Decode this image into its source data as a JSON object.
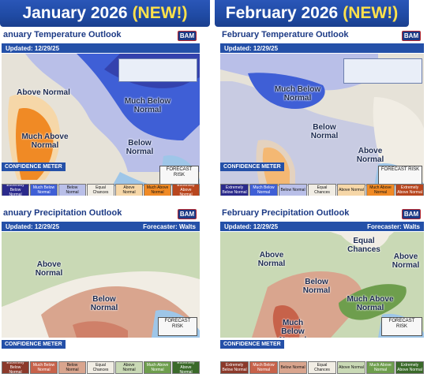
{
  "headers": {
    "left": {
      "title": "January 2026",
      "badge": "(NEW!)"
    },
    "right": {
      "title": "February 2026",
      "badge": "(NEW!)"
    }
  },
  "panels": {
    "jan_temp": {
      "title": "anuary Temperature Outlook",
      "logo": "BAM",
      "updated": "Updated: 12/29/25",
      "forecaster": "",
      "labels": [
        "Above Normal",
        "Much Below Normal",
        "Much Above Normal",
        "Below Normal"
      ],
      "meter": "CONFIDENCE METER",
      "forecast_risk": "FORECAST RISK",
      "legend": [
        "Extremely Below Normal",
        "Much Below Normal",
        "Below Normal",
        "Equal Chances",
        "Above Normal",
        "Much Above Normal",
        "Extremely Above Normal"
      ]
    },
    "feb_temp": {
      "title": "February Temperature Outlook",
      "logo": "BAM",
      "updated": "Updated: 12/29/25",
      "forecaster": "",
      "labels": [
        "Much Below Normal",
        "Below Normal",
        "Above Normal"
      ],
      "meter": "CONFIDENCE METER",
      "forecast_risk": "FORECAST RISK",
      "legend": [
        "Extremely Below Normal",
        "Much Below Normal",
        "Below Normal",
        "Equal Chances",
        "Above Normal",
        "Much Above Normal",
        "Extremely Above Normal"
      ]
    },
    "jan_precip": {
      "title": "anuary Precipitation Outlook",
      "logo": "BAM",
      "updated": "Updated: 12/29/25",
      "forecaster": "Forecaster: Walts",
      "labels": [
        "Above Normal",
        "Below Normal"
      ],
      "meter": "CONFIDENCE METER",
      "forecast_risk": "FORECAST RISK",
      "legend": [
        "Extremely Below Normal",
        "Much Below Normal",
        "Below Normal",
        "Equal Chances",
        "Above Normal",
        "Much Above Normal",
        "Extremely Above Normal"
      ]
    },
    "feb_precip": {
      "title": "February Precipitation Outlook",
      "logo": "BAM",
      "updated": "Updated: 12/29/25",
      "forecaster": "Forecaster: Walts",
      "labels": [
        "Above Normal",
        "Equal Chances",
        "Above Normal",
        "Below Normal",
        "Much Above Normal",
        "Much Below Normal"
      ],
      "meter": "CONFIDENCE METER",
      "forecast_risk": "FORECAST RISK",
      "legend": [
        "Extremely Below Normal",
        "Much Below Normal",
        "Below Normal",
        "Equal Chances",
        "Above Normal",
        "Much Above Normal",
        "Extremely Above Normal"
      ]
    }
  },
  "colors": {
    "header_blue": "#1f4aa3",
    "badge_yellow": "#ffe14a",
    "temp_legend": [
      "#2b2a8c",
      "#3f5fd6",
      "#b9bfe8",
      "#f1ede4",
      "#f6d7a8",
      "#f08a25",
      "#b8461e"
    ],
    "precip_legend": [
      "#8c3a2b",
      "#c7624a",
      "#d9a58e",
      "#f1ede4",
      "#c9d9b5",
      "#6e9e4d",
      "#3b6a2a"
    ]
  }
}
